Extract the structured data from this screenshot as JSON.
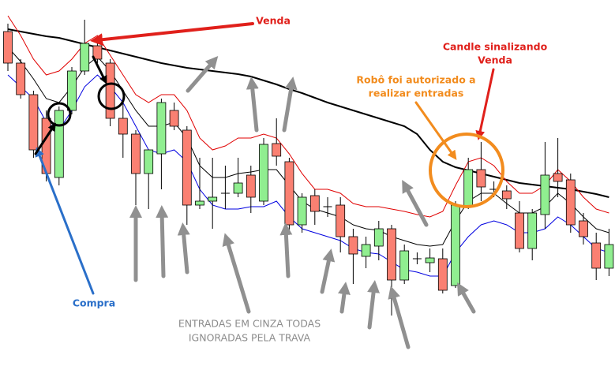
{
  "chart_data": {
    "type": "candlestick",
    "ylim": [
      0,
      483
    ],
    "up_color": "#90ee90",
    "down_color": "#fa8072",
    "wick_color": "#000000",
    "open": [
      443,
      403,
      363,
      333,
      258,
      343,
      393,
      425,
      403,
      333,
      313,
      263,
      288,
      343,
      318,
      223,
      228,
      238,
      238,
      261,
      228,
      301,
      278,
      198,
      235,
      221,
      223,
      183,
      158,
      171,
      193,
      128,
      155,
      150,
      155,
      121,
      221,
      268,
      243,
      241,
      213,
      168,
      211,
      263,
      255,
      203,
      175,
      143
    ],
    "close": [
      403,
      363,
      293,
      263,
      343,
      393,
      428,
      408,
      333,
      313,
      263,
      293,
      353,
      323,
      223,
      228,
      233,
      238,
      251,
      233,
      300,
      285,
      198,
      233,
      215,
      221,
      183,
      161,
      173,
      193,
      128,
      165,
      155,
      156,
      115,
      223,
      268,
      246,
      243,
      231,
      168,
      213,
      261,
      253,
      198,
      183,
      143,
      173
    ],
    "high": [
      453,
      408,
      368,
      343,
      348,
      398,
      458,
      428,
      408,
      358,
      318,
      293,
      358,
      353,
      323,
      283,
      283,
      273,
      283,
      273,
      308,
      333,
      283,
      238,
      243,
      233,
      233,
      193,
      183,
      203,
      198,
      173,
      163,
      168,
      168,
      228,
      283,
      303,
      253,
      248,
      228,
      218,
      303,
      308,
      263,
      213,
      188,
      193
    ],
    "low": [
      393,
      358,
      283,
      253,
      248,
      338,
      388,
      403,
      323,
      283,
      223,
      218,
      243,
      318,
      198,
      218,
      193,
      218,
      233,
      213,
      223,
      273,
      188,
      188,
      198,
      208,
      163,
      123,
      143,
      153,
      83,
      123,
      148,
      138,
      111,
      118,
      218,
      228,
      233,
      218,
      163,
      153,
      193,
      233,
      188,
      173,
      128,
      133
    ],
    "series": [
      {
        "color": "#000000",
        "width": 2,
        "values": [
          446,
          443,
          440,
          437,
          435,
          431,
          427,
          423,
          419,
          415,
          411,
          407,
          403,
          400,
          397,
          395,
          393,
          391,
          389,
          386,
          381,
          376,
          370,
          365,
          359,
          353,
          348,
          343,
          338,
          333,
          328,
          323,
          313,
          293,
          278,
          271,
          267,
          263,
          259,
          255,
          251,
          249,
          247,
          245,
          243,
          240,
          237,
          233
        ]
      },
      {
        "color": "#e00000",
        "width": 1,
        "values": [
          463,
          438,
          408,
          388,
          393,
          408,
          428,
          438,
          413,
          388,
          363,
          353,
          363,
          363,
          343,
          308,
          293,
          298,
          308,
          308,
          313,
          308,
          288,
          263,
          243,
          243,
          238,
          225,
          221,
          221,
          218,
          215,
          211,
          208,
          215,
          248,
          278,
          283,
          273,
          253,
          238,
          238,
          248,
          268,
          253,
          233,
          218,
          213
        ]
      },
      {
        "color": "#0000e0",
        "width": 1,
        "values": [
          388,
          373,
          358,
          328,
          318,
          343,
          373,
          388,
          373,
          353,
          323,
          293,
          288,
          293,
          278,
          243,
          223,
          218,
          218,
          221,
          221,
          228,
          208,
          193,
          188,
          183,
          178,
          168,
          163,
          161,
          151,
          141,
          138,
          133,
          133,
          163,
          183,
          198,
          203,
          198,
          188,
          188,
          193,
          208,
          198,
          183,
          168,
          163
        ]
      },
      {
        "color": "#000000",
        "width": 1,
        "values": [
          423,
          405,
          383,
          358,
          353,
          373,
          398,
          411,
          393,
          368,
          343,
          323,
          323,
          328,
          308,
          273,
          258,
          258,
          263,
          265,
          268,
          268,
          248,
          228,
          218,
          213,
          208,
          198,
          193,
          191,
          183,
          178,
          173,
          171,
          173,
          203,
          228,
          238,
          238,
          225,
          213,
          213,
          221,
          238,
          225,
          208,
          193,
          188
        ]
      }
    ],
    "annotations": [
      {
        "lines": [
          "Venda"
        ],
        "color": "#e0201b"
      },
      {
        "lines": [
          "Candle sinalizando",
          "Venda"
        ],
        "color": "#e0201b"
      },
      {
        "lines": [
          "Robô foi autorizado a",
          "realizar entradas"
        ],
        "color": "#f28c1e"
      },
      {
        "lines": [
          "Compra"
        ],
        "color": "#2a6fc9"
      },
      {
        "lines": [
          "ENTRADAS EM CINZA TODAS",
          "IGNORADAS PELA TRAVA"
        ],
        "color": "#8c8c8c"
      }
    ]
  }
}
